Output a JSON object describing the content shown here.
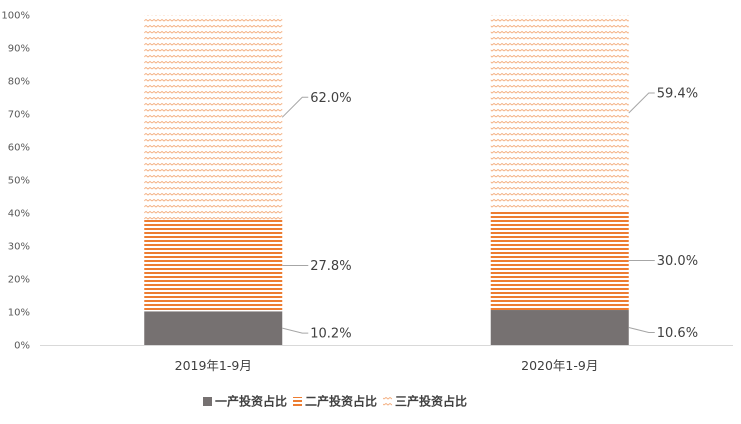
{
  "chart_data": {
    "type": "bar",
    "stacked": true,
    "categories": [
      "2019年1-9月",
      "2020年1-9月"
    ],
    "series": [
      {
        "name": "一产投资占比",
        "values": [
          10.2,
          10.6
        ],
        "labels": [
          "10.2%",
          "10.6%"
        ],
        "color": "#767171",
        "pattern": "solid"
      },
      {
        "name": "二产投资占比",
        "values": [
          27.8,
          30.0
        ],
        "labels": [
          "27.8%",
          "30.0%"
        ],
        "color": "#ed7d31",
        "pattern": "horizontal-lines"
      },
      {
        "name": "三产投资占比",
        "values": [
          62.0,
          59.4
        ],
        "labels": [
          "62.0%",
          "59.4%"
        ],
        "color": "#f4b183",
        "pattern": "dashed-zigzag"
      }
    ],
    "ylim": [
      0,
      100
    ],
    "y_ticks": [
      "0%",
      "10%",
      "20%",
      "30%",
      "40%",
      "50%",
      "60%",
      "70%",
      "80%",
      "90%",
      "100%"
    ],
    "legend_position": "bottom",
    "grid": false
  }
}
